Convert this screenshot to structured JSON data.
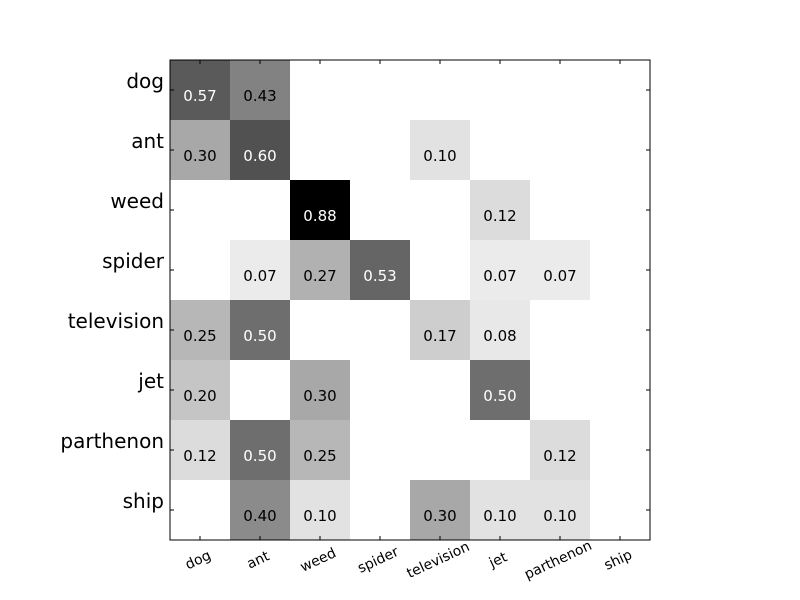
{
  "chart_data": {
    "type": "heatmap",
    "title": "",
    "xlabel": "",
    "ylabel": "",
    "colormap": "gray_r",
    "value_range": [
      0,
      0.88
    ],
    "x_categories": [
      "dog",
      "ant",
      "weed",
      "spider",
      "television",
      "jet",
      "parthenon",
      "ship"
    ],
    "y_categories": [
      "dog",
      "ant",
      "weed",
      "spider",
      "television",
      "jet",
      "parthenon",
      "ship"
    ],
    "cells": [
      {
        "row": "dog",
        "col": "dog",
        "value": 0.57
      },
      {
        "row": "dog",
        "col": "ant",
        "value": 0.43
      },
      {
        "row": "ant",
        "col": "dog",
        "value": 0.3
      },
      {
        "row": "ant",
        "col": "ant",
        "value": 0.6
      },
      {
        "row": "ant",
        "col": "television",
        "value": 0.1
      },
      {
        "row": "weed",
        "col": "weed",
        "value": 0.88
      },
      {
        "row": "weed",
        "col": "jet",
        "value": 0.12
      },
      {
        "row": "spider",
        "col": "ant",
        "value": 0.07
      },
      {
        "row": "spider",
        "col": "weed",
        "value": 0.27
      },
      {
        "row": "spider",
        "col": "spider",
        "value": 0.53
      },
      {
        "row": "spider",
        "col": "jet",
        "value": 0.07
      },
      {
        "row": "spider",
        "col": "parthenon",
        "value": 0.07
      },
      {
        "row": "television",
        "col": "dog",
        "value": 0.25
      },
      {
        "row": "television",
        "col": "ant",
        "value": 0.5
      },
      {
        "row": "television",
        "col": "television",
        "value": 0.17
      },
      {
        "row": "television",
        "col": "jet",
        "value": 0.08
      },
      {
        "row": "jet",
        "col": "dog",
        "value": 0.2
      },
      {
        "row": "jet",
        "col": "weed",
        "value": 0.3
      },
      {
        "row": "jet",
        "col": "jet",
        "value": 0.5
      },
      {
        "row": "parthenon",
        "col": "dog",
        "value": 0.12
      },
      {
        "row": "parthenon",
        "col": "ant",
        "value": 0.5
      },
      {
        "row": "parthenon",
        "col": "weed",
        "value": 0.25
      },
      {
        "row": "parthenon",
        "col": "parthenon",
        "value": 0.12
      },
      {
        "row": "ship",
        "col": "ant",
        "value": 0.4
      },
      {
        "row": "ship",
        "col": "weed",
        "value": 0.1
      },
      {
        "row": "ship",
        "col": "television",
        "value": 0.3
      },
      {
        "row": "ship",
        "col": "jet",
        "value": 0.1
      },
      {
        "row": "ship",
        "col": "parthenon",
        "value": 0.1
      }
    ],
    "grid": false,
    "legend": "none"
  }
}
